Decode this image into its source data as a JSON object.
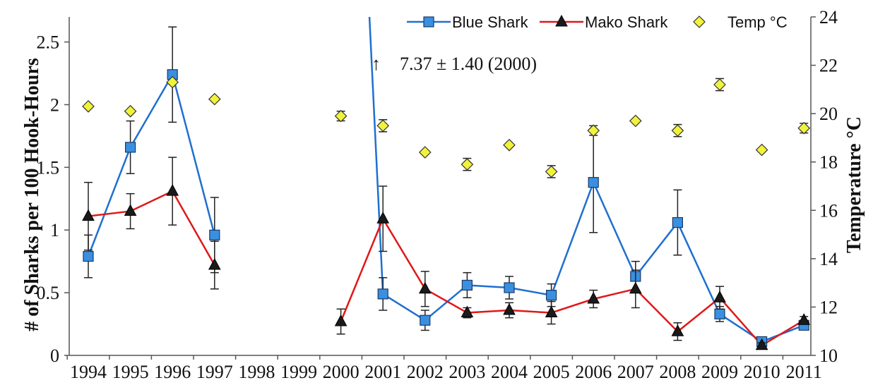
{
  "chart_data": {
    "type": "line",
    "x": [
      "1994",
      "1995",
      "1996",
      "1997",
      "1998",
      "1999",
      "2000",
      "2001",
      "2002",
      "2003",
      "2004",
      "2005",
      "2006",
      "2007",
      "2008",
      "2009",
      "2010",
      "2011"
    ],
    "xlabel": "",
    "ylabel": "# of Sharks per 100 Hook-Hours",
    "y2label": "Temperature °C",
    "ylim": [
      0,
      2.7
    ],
    "y2lim": [
      10,
      24
    ],
    "yticks": [
      "0",
      "0.5",
      "1",
      "1.5",
      "2",
      "2.5"
    ],
    "y2ticks": [
      "10",
      "12",
      "14",
      "16",
      "18",
      "20",
      "22",
      "24"
    ],
    "legend_position": "top-right",
    "annotation": "7.37 ± 1.40 (2000)",
    "annotation_arrow": "↑",
    "series": [
      {
        "name": "Blue Shark",
        "color": "#1f6fd0",
        "marker": "square",
        "marker_color": "#3a8fe0",
        "values": [
          0.79,
          1.66,
          2.24,
          0.96,
          null,
          null,
          7.37,
          0.49,
          0.28,
          0.56,
          0.54,
          0.48,
          1.38,
          0.63,
          1.06,
          0.33,
          0.11,
          0.24
        ],
        "errors": [
          0.17,
          0.21,
          0.38,
          0.3,
          null,
          null,
          1.4,
          0.13,
          0.08,
          0.1,
          0.09,
          0.09,
          0.4,
          0.12,
          0.26,
          0.06,
          0.03,
          0.03
        ]
      },
      {
        "name": "Mako Shark",
        "color": "#e01818",
        "marker": "triangle",
        "marker_color": "#1a1a1a",
        "values": [
          1.11,
          1.15,
          1.31,
          0.72,
          null,
          null,
          0.27,
          1.09,
          0.53,
          0.34,
          0.36,
          0.34,
          0.45,
          0.53,
          0.19,
          0.46,
          0.08,
          0.28
        ],
        "errors": [
          0.27,
          0.14,
          0.27,
          0.19,
          null,
          null,
          0.1,
          0.26,
          0.14,
          0.04,
          0.06,
          0.09,
          0.07,
          0.15,
          0.07,
          0.09,
          0.02,
          0.03
        ]
      },
      {
        "name": "Temp °C",
        "axis": "right",
        "color": "#f1f33a",
        "marker": "diamond",
        "values": [
          20.3,
          20.1,
          21.3,
          20.6,
          null,
          null,
          19.9,
          19.5,
          18.4,
          17.9,
          18.7,
          17.6,
          19.3,
          19.7,
          19.3,
          21.2,
          18.5,
          19.4
        ],
        "errors": [
          0,
          0,
          0,
          0,
          null,
          null,
          0.2,
          0.25,
          0,
          0.25,
          0,
          0.25,
          0.2,
          0,
          0.25,
          0.25,
          0,
          0.2
        ]
      }
    ]
  }
}
